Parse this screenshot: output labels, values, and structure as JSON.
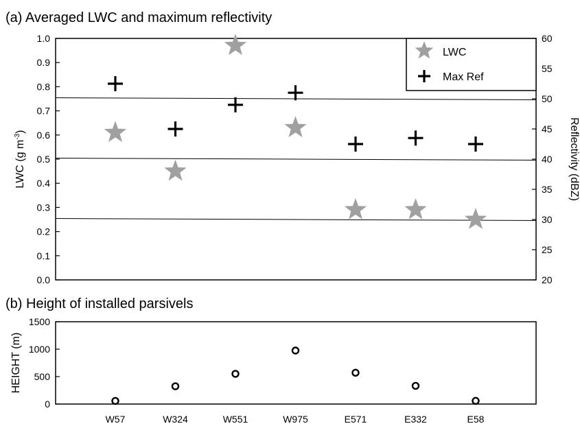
{
  "chart_data": [
    {
      "type": "scatter",
      "title": "(a) Averaged LWC and maximum reflectivity",
      "categories": [
        "W57",
        "W324",
        "W551",
        "W975",
        "E571",
        "E332",
        "E58"
      ],
      "ylabel": "LWC (g m",
      "ylabel_sup": "-3",
      "ylabel_close": ")",
      "ylim": [
        0.0,
        1.0
      ],
      "y_ticks": [
        "0.0",
        "0.1",
        "0.2",
        "0.3",
        "0.4",
        "0.5",
        "0.6",
        "0.7",
        "0.8",
        "0.9",
        "1.0"
      ],
      "y2label": "Reflectivity (dBZ)",
      "y2lim": [
        20,
        60
      ],
      "y2_ticks": [
        "20",
        "25",
        "30",
        "35",
        "40",
        "45",
        "50",
        "55",
        "60"
      ],
      "legend_position": "top-right",
      "reference_lines_dbz": [
        30,
        40,
        50
      ],
      "series": [
        {
          "name": "LWC",
          "axis": "left",
          "marker": "star",
          "color": "#a0a0a0",
          "values": [
            0.61,
            0.45,
            0.97,
            0.63,
            0.29,
            0.29,
            0.25
          ]
        },
        {
          "name": "Max Ref",
          "axis": "right",
          "marker": "plus",
          "color": "#000000",
          "values": [
            52.5,
            45.0,
            49.0,
            51.0,
            42.5,
            43.5,
            42.5
          ]
        }
      ]
    },
    {
      "type": "scatter",
      "title": "(b) Height of installed parsivels",
      "categories": [
        "W57",
        "W324",
        "W551",
        "W975",
        "E571",
        "E332",
        "E58"
      ],
      "ylabel": "HEIGHT (m)",
      "ylim": [
        0,
        1500
      ],
      "y_ticks": [
        "0",
        "500",
        "1000",
        "1500"
      ],
      "series": [
        {
          "axis": "left",
          "marker": "circle",
          "color": "#000000",
          "values": [
            57,
            324,
            551,
            975,
            571,
            332,
            58
          ]
        }
      ]
    }
  ]
}
